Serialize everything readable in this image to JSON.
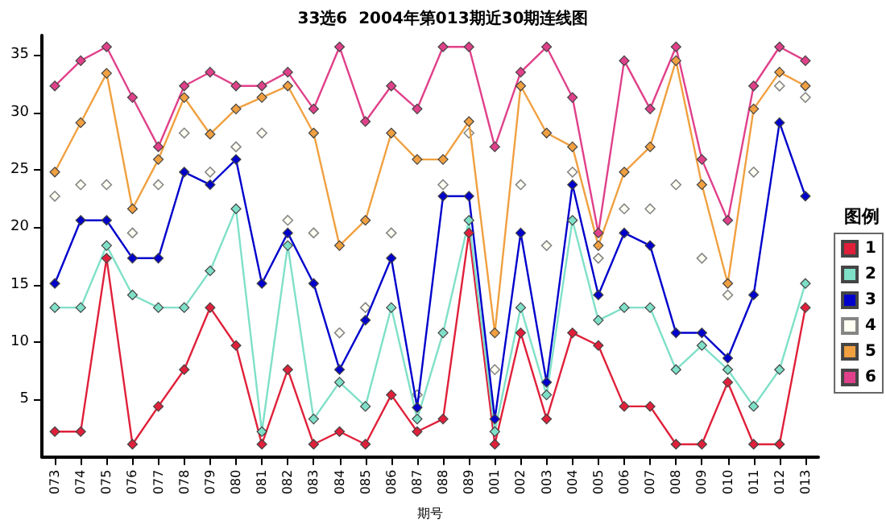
{
  "chart_data": {
    "type": "line",
    "title": "33选6  2004年第013期近30期连线图",
    "xlabel": "期号",
    "legend_title": "图例",
    "legend": "right",
    "grid": false,
    "marker": "diamond",
    "categories": [
      "073",
      "074",
      "075",
      "076",
      "077",
      "078",
      "079",
      "080",
      "081",
      "082",
      "083",
      "084",
      "085",
      "086",
      "087",
      "088",
      "089",
      "001",
      "002",
      "003",
      "004",
      "005",
      "006",
      "007",
      "008",
      "009",
      "010",
      "011",
      "012",
      "013"
    ],
    "ylim": [
      0,
      36.7
    ],
    "yticks": [
      5,
      10,
      15,
      20,
      25,
      30,
      35
    ],
    "series": [
      {
        "name": "1",
        "color": "#e0203a",
        "values": [
          2.2,
          2.2,
          17.3,
          1.1,
          4.4,
          7.6,
          13.0,
          9.7,
          1.1,
          7.6,
          1.1,
          2.2,
          1.1,
          5.4,
          2.2,
          3.3,
          19.5,
          1.1,
          10.8,
          3.3,
          10.8,
          9.7,
          4.4,
          4.4,
          1.1,
          1.1,
          6.5,
          1.1,
          1.1,
          13.0
        ]
      },
      {
        "name": "2",
        "color": "#7fe0c8",
        "values": [
          13.0,
          13.0,
          18.4,
          14.1,
          13.0,
          13.0,
          16.2,
          21.6,
          2.2,
          18.4,
          3.3,
          6.5,
          4.4,
          13.0,
          3.3,
          10.8,
          20.6,
          2.2,
          13.0,
          5.4,
          20.6,
          11.9,
          13.0,
          13.0,
          7.6,
          9.7,
          7.6,
          4.4,
          7.6,
          15.1
        ]
      },
      {
        "name": "3",
        "color": "#0000cc",
        "values": [
          15.1,
          20.6,
          20.6,
          17.3,
          17.3,
          24.8,
          23.7,
          25.9,
          15.1,
          19.5,
          15.1,
          7.6,
          11.9,
          17.3,
          4.3,
          22.7,
          22.7,
          3.3,
          19.5,
          6.5,
          23.7,
          14.1,
          19.5,
          18.4,
          10.8,
          10.8,
          8.6,
          14.1,
          29.1,
          22.7
        ]
      },
      {
        "name": "4",
        "type": "scatter",
        "color": "#fffff0",
        "values": [
          22.7,
          23.7,
          23.7,
          19.5,
          23.7,
          28.2,
          24.8,
          27.0,
          28.2,
          20.6,
          19.5,
          10.8,
          13.0,
          19.5,
          5.4,
          23.7,
          28.2,
          7.6,
          23.7,
          18.4,
          24.8,
          17.3,
          21.6,
          21.6,
          23.7,
          17.3,
          14.1,
          24.8,
          32.3,
          31.3
        ]
      },
      {
        "name": "5",
        "color": "#f0a040",
        "values": [
          24.8,
          29.1,
          33.4,
          21.6,
          25.9,
          31.3,
          28.1,
          30.3,
          31.3,
          32.3,
          28.2,
          18.4,
          20.6,
          28.2,
          25.9,
          25.9,
          29.2,
          10.8,
          32.3,
          28.2,
          27.0,
          18.4,
          24.8,
          27.0,
          34.5,
          23.7,
          15.1,
          30.3,
          33.5,
          32.3
        ]
      },
      {
        "name": "6",
        "color": "#e0408a",
        "values": [
          32.3,
          34.5,
          35.7,
          31.3,
          27.0,
          32.3,
          33.5,
          32.3,
          32.3,
          33.5,
          30.3,
          35.7,
          29.2,
          32.3,
          30.3,
          35.7,
          35.7,
          27.0,
          33.5,
          35.7,
          31.3,
          19.5,
          34.5,
          30.3,
          35.7,
          25.9,
          20.6,
          32.3,
          35.7,
          34.5
        ]
      }
    ]
  }
}
